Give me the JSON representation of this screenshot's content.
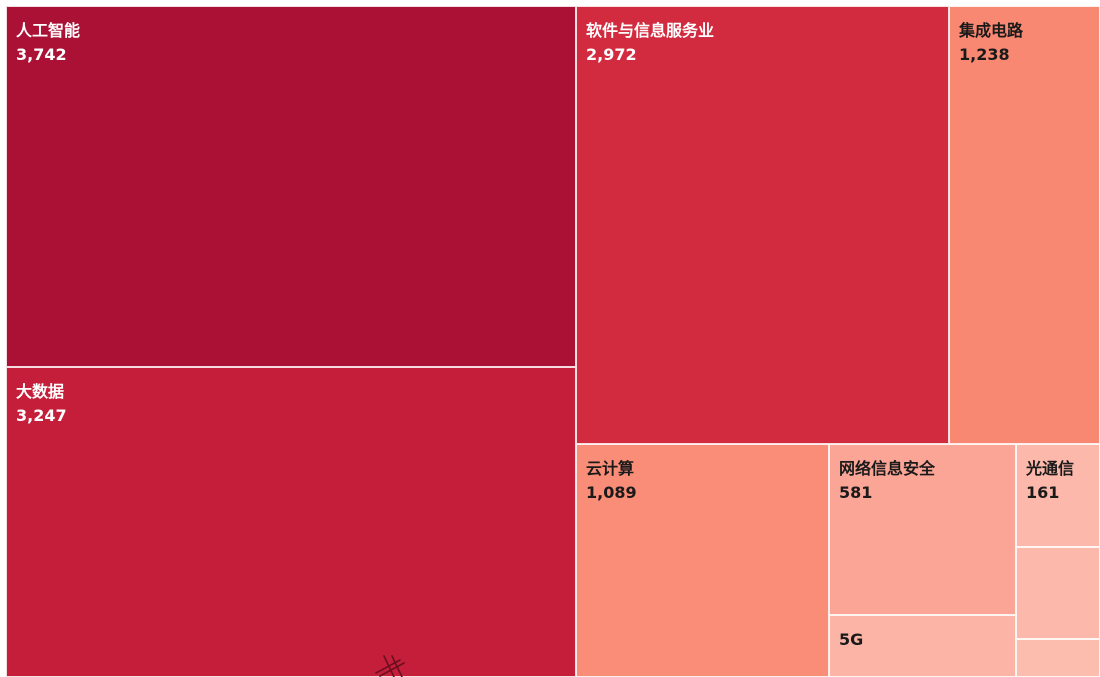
{
  "chart_data": {
    "type": "treemap",
    "series": [
      {
        "name": "人工智能",
        "value": 3742,
        "value_label": "3,742",
        "color": "#ab1035"
      },
      {
        "name": "大数据",
        "value": 3247,
        "value_label": "3,247",
        "color": "#c51e3a"
      },
      {
        "name": "软件与信息服务业",
        "value": 2972,
        "value_label": "2,972",
        "color": "#d22a3e"
      },
      {
        "name": "集成电路",
        "value": 1238,
        "value_label": "1,238",
        "color": "#f98872"
      },
      {
        "name": "云计算",
        "value": 1089,
        "value_label": "1,089",
        "color": "#fa8d78"
      },
      {
        "name": "网络信息安全",
        "value": 581,
        "value_label": "581",
        "color": "#fba596"
      },
      {
        "name": "5G",
        "value": null,
        "value_label": "",
        "color": "#fcb4a6"
      },
      {
        "name": "光通信",
        "value": 161,
        "value_label": "161",
        "color": "#fcb9ab"
      },
      {
        "name": "",
        "value": null,
        "value_label": "",
        "color": "#fcb9ab"
      },
      {
        "name": "",
        "value": null,
        "value_label": "",
        "color": "#fcbcae"
      }
    ]
  }
}
